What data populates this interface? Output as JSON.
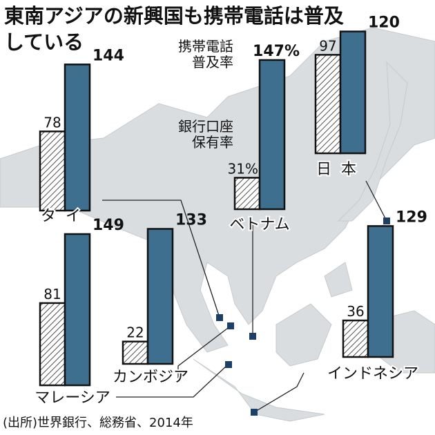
{
  "chart_data": {
    "type": "bar",
    "title": "東南アジアの新興国も携帯電話は普及している",
    "source": "(出所)世界銀行、総務省、2014年",
    "categories": [
      "タイ",
      "ベトナム",
      "日本",
      "マレーシア",
      "カンボジア",
      "インドネシア"
    ],
    "series": [
      {
        "name": "銀行口座保有率",
        "color": "#ffffff",
        "values": [
          78,
          31,
          97,
          81,
          22,
          36
        ],
        "value_labels": [
          "78",
          "31%",
          "97",
          "81",
          "22",
          "36"
        ]
      },
      {
        "name": "携帯電話普及率",
        "color": "#3f6f8f",
        "values": [
          144,
          147,
          120,
          149,
          133,
          129
        ],
        "value_labels": [
          "144",
          "147%",
          "120",
          "149",
          "133",
          "129"
        ]
      }
    ]
  }
}
